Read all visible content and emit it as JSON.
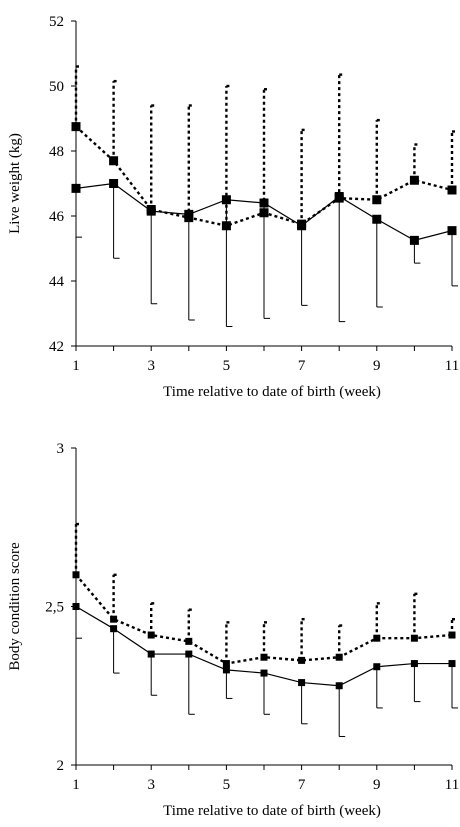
{
  "chart_data": [
    {
      "type": "line",
      "xlabel": "Time relative to date of birth (week)",
      "ylabel": "Live weight (kg)",
      "ylim": [
        42,
        52
      ],
      "xlim": [
        1,
        11
      ],
      "x_ticks": [
        1,
        3,
        5,
        7,
        9,
        11
      ],
      "y_ticks": [
        42,
        44,
        46,
        48,
        50,
        52
      ],
      "y_tick_labels": [
        "42",
        "44",
        "46",
        "48",
        "50",
        "52"
      ],
      "grid": false,
      "legend": "none",
      "x": [
        1,
        2,
        3,
        4,
        5,
        6,
        7,
        8,
        9,
        10,
        11
      ],
      "series": [
        {
          "style": "solid",
          "error_direction": "down",
          "values": [
            46.85,
            47.0,
            46.15,
            46.05,
            46.5,
            46.4,
            45.7,
            46.6,
            45.9,
            45.25,
            45.55
          ],
          "error": [
            1.5,
            2.3,
            2.85,
            3.25,
            3.9,
            3.55,
            2.45,
            3.85,
            2.7,
            0.7,
            1.7
          ]
        },
        {
          "style": "dotted",
          "error_direction": "up",
          "values": [
            48.75,
            47.7,
            46.2,
            45.95,
            45.7,
            46.1,
            45.75,
            46.55,
            46.5,
            47.1,
            46.8
          ],
          "error": [
            1.85,
            2.45,
            3.2,
            3.45,
            4.3,
            3.8,
            2.9,
            3.8,
            2.45,
            1.1,
            1.8
          ]
        }
      ]
    },
    {
      "type": "line",
      "xlabel": "Time relative to date of birth (week)",
      "ylabel": "Body condition score",
      "ylim": [
        2,
        3
      ],
      "xlim": [
        1,
        11
      ],
      "x_ticks": [
        1,
        3,
        5,
        7,
        9,
        11
      ],
      "y_ticks": [
        2,
        2.5,
        3
      ],
      "y_tick_labels": [
        "2",
        "2,5",
        "3"
      ],
      "grid": false,
      "legend": "none",
      "x": [
        1,
        2,
        3,
        4,
        5,
        6,
        7,
        8,
        9,
        10,
        11
      ],
      "series": [
        {
          "style": "solid",
          "error_direction": "down",
          "values": [
            2.5,
            2.43,
            2.35,
            2.35,
            2.3,
            2.29,
            2.26,
            2.25,
            2.31,
            2.32,
            2.32
          ],
          "error": [
            0.1,
            0.14,
            0.13,
            0.19,
            0.09,
            0.13,
            0.13,
            0.16,
            0.13,
            0.12,
            0.14
          ]
        },
        {
          "style": "dotted",
          "error_direction": "up",
          "values": [
            2.6,
            2.46,
            2.41,
            2.39,
            2.32,
            2.34,
            2.33,
            2.34,
            2.4,
            2.4,
            2.41
          ],
          "error": [
            0.16,
            0.14,
            0.1,
            0.1,
            0.13,
            0.11,
            0.13,
            0.1,
            0.11,
            0.14,
            0.05
          ]
        }
      ]
    }
  ]
}
